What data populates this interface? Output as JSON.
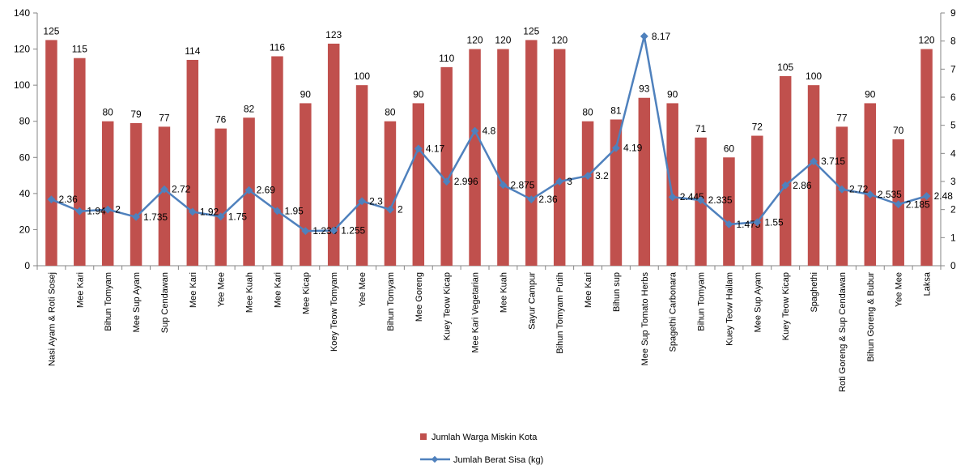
{
  "chart_data": {
    "type": "bar",
    "categories": [
      "Nasi Ayam & Roti Sosej",
      "Mee Kari",
      "Bihun Tomyam",
      "Mee Sup Ayam",
      "Sup Cendawan",
      "Mee Kari",
      "Yee Mee",
      "Mee Kuah",
      "Mee Kari",
      "Mee Kicap",
      "Koey Teow Tomyam",
      "Yee Mee",
      "Bihun Tomyam",
      "Mee Goreng",
      "Kuey Teow Kicap",
      "Mee Kari Vegetarian",
      "Mee Kuah",
      "Sayur Campur",
      "Bihun Tomyam Putih",
      "Mee Kari",
      "Bihun sup",
      "Mee Sup Tomato Herbs",
      "Spagethi Carbonara",
      "Bihun Tomyam",
      "Kuey Teow Hailam",
      "Mee Sup Ayam",
      "Kuey Teow Kicap",
      "Spaghethi",
      "Roti Goreng & Sup Cendawan",
      "Bihun Goreng & Bubur",
      "Yee Mee",
      "Laksa"
    ],
    "series": [
      {
        "name": "Jumlah Warga Miskin Kota",
        "type": "bar",
        "axis": "left",
        "color": "#C0504D",
        "values": [
          125,
          115,
          80,
          79,
          77,
          114,
          76,
          82,
          116,
          90,
          123,
          100,
          80,
          90,
          110,
          120,
          120,
          125,
          120,
          80,
          81,
          93,
          90,
          71,
          60,
          72,
          105,
          100,
          77,
          90,
          70,
          120
        ]
      },
      {
        "name": "Jumlah Berat Sisa (kg)",
        "type": "line",
        "axis": "right",
        "color": "#4F81BD",
        "values": [
          2.36,
          1.94,
          2,
          1.735,
          2.72,
          1.92,
          1.75,
          2.69,
          1.95,
          1.235,
          1.255,
          2.3,
          2,
          4.17,
          2.996,
          4.8,
          2.875,
          2.36,
          3,
          3.2,
          4.19,
          8.17,
          2.445,
          2.335,
          1.475,
          1.55,
          2.86,
          3.715,
          2.72,
          2.535,
          2.185,
          2.48
        ]
      }
    ],
    "left_axis": {
      "min": 0,
      "max": 140,
      "step": 20,
      "ticks": [
        "0",
        "20",
        "40",
        "60",
        "80",
        "100",
        "120",
        "140"
      ]
    },
    "right_axis": {
      "min": 0,
      "max": 9,
      "step": 1,
      "ticks": [
        "0",
        "1",
        "2",
        "3",
        "4",
        "5",
        "6",
        "7",
        "8",
        "9"
      ]
    },
    "grid": false,
    "legend_position": "bottom",
    "line_labels": [
      "2.36",
      "1.94",
      "2",
      "1.735",
      "2.72",
      "1.92",
      "1.75",
      "2.69",
      "1.95",
      "1.235",
      "1.255",
      "2.3",
      "2",
      "4.17",
      "2.996",
      "4.8",
      "2.875",
      "2.36",
      "3",
      "3.2",
      "4.19",
      "8.17",
      "2.445",
      "2.335",
      "1.475",
      "1.55",
      "2.86",
      "3.715",
      "2.72",
      "2.535",
      "2.185",
      "2.48"
    ],
    "bar_labels": [
      "125",
      "115",
      "80",
      "79",
      "77",
      "114",
      "76",
      "82",
      "116",
      "90",
      "123",
      "100",
      "80",
      "90",
      "110",
      "120",
      "120",
      "125",
      "120",
      "80",
      "81",
      "93",
      "90",
      "71",
      "60",
      "72",
      "105",
      "100",
      "77",
      "90",
      "70",
      "120"
    ]
  }
}
